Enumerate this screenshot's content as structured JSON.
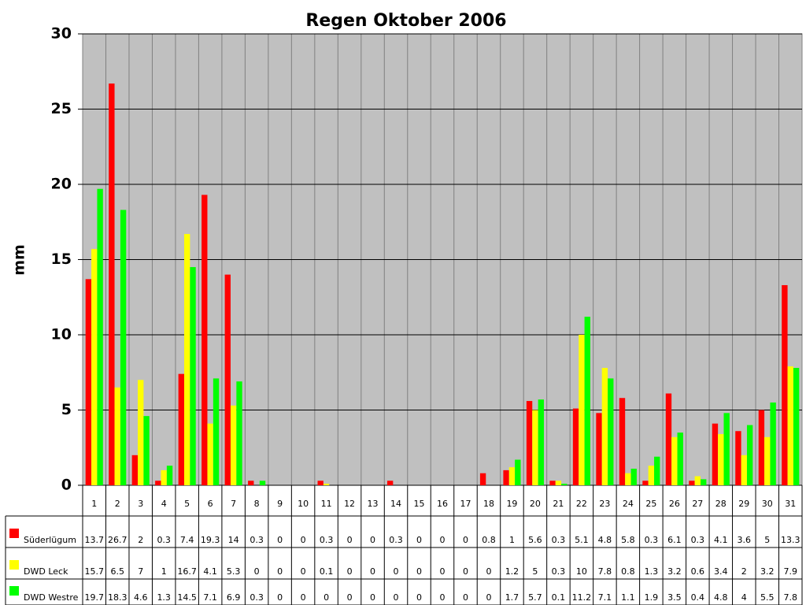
{
  "chart_data": {
    "type": "bar",
    "title": "Regen Oktober 2006",
    "y_label": "mm",
    "categories": [
      "1",
      "2",
      "3",
      "4",
      "5",
      "6",
      "7",
      "8",
      "9",
      "10",
      "11",
      "12",
      "13",
      "14",
      "15",
      "16",
      "17",
      "18",
      "19",
      "20",
      "21",
      "22",
      "23",
      "24",
      "25",
      "26",
      "27",
      "28",
      "29",
      "30",
      "31"
    ],
    "series": [
      {
        "name": "Süderlügum",
        "color": "#ff0000",
        "values": [
          13.7,
          26.7,
          2,
          0.3,
          7.4,
          19.3,
          14,
          0.3,
          0,
          0,
          0.3,
          0,
          0,
          0.3,
          0,
          0,
          0,
          0.8,
          1,
          5.6,
          0.3,
          5.1,
          4.8,
          5.8,
          0.3,
          6.1,
          0.3,
          4.1,
          3.6,
          5,
          13.3
        ]
      },
      {
        "name": "DWD Leck",
        "color": "#ffff00",
        "values": [
          15.7,
          6.5,
          7,
          1,
          16.7,
          4.1,
          5.3,
          0,
          0,
          0,
          0.1,
          0,
          0,
          0,
          0,
          0,
          0,
          0,
          1.2,
          5,
          0.3,
          10,
          7.8,
          0.8,
          1.3,
          3.2,
          0.6,
          3.4,
          2,
          3.2,
          7.9
        ]
      },
      {
        "name": "DWD Westre",
        "color": "#00ff00",
        "values": [
          19.7,
          18.3,
          4.6,
          1.3,
          14.5,
          7.1,
          6.9,
          0.3,
          0,
          0,
          0,
          0,
          0,
          0,
          0,
          0,
          0,
          0,
          1.7,
          5.7,
          0.1,
          11.2,
          7.1,
          1.1,
          1.9,
          3.5,
          0.4,
          4.8,
          4,
          5.5,
          7.8
        ]
      }
    ],
    "ylim": [
      0,
      30
    ],
    "yticks": [
      0,
      5,
      10,
      15,
      20,
      25,
      30
    ],
    "grid": true
  }
}
